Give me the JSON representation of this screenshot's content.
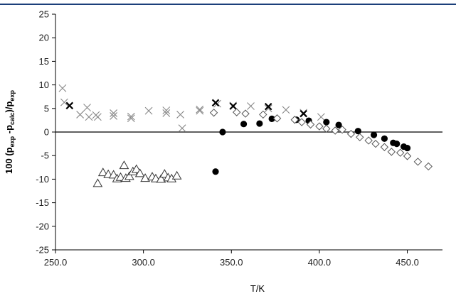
{
  "chart_data": {
    "type": "scatter",
    "title": "",
    "xlabel": "T/K",
    "ylabel_parts": [
      "100 (p",
      "exp",
      " -p",
      "calc",
      ")/p",
      "exp"
    ],
    "xlim": [
      250,
      470
    ],
    "ylim": [
      -25,
      25
    ],
    "xticks": [
      250,
      300,
      350,
      400,
      450
    ],
    "xtick_labels": [
      "250.0",
      "300.0",
      "350.0",
      "400.0",
      "450.0"
    ],
    "yticks": [
      -25,
      -20,
      -15,
      -10,
      -5,
      0,
      5,
      10,
      15,
      20,
      25
    ],
    "ytick_labels": [
      "-25",
      "-20",
      "-15",
      "-10",
      "-5",
      "0",
      "5",
      "10",
      "15",
      "20",
      "25"
    ],
    "grid": false,
    "legend": "none",
    "zero_line": true,
    "series": [
      {
        "marker": "cross-thin",
        "color": "#888888",
        "x": [
          254,
          255,
          264,
          268,
          269,
          273,
          274,
          283,
          283,
          293,
          293,
          303,
          313,
          313,
          321,
          322,
          332,
          332,
          342,
          351,
          361,
          371,
          381,
          391,
          401
        ],
        "y": [
          9.3,
          6.3,
          3.7,
          5.2,
          3.2,
          3.6,
          3.2,
          4.0,
          3.4,
          3.3,
          2.9,
          4.5,
          4.6,
          4.0,
          3.7,
          0.8,
          4.8,
          4.5,
          6.0,
          5.6,
          5.5,
          5.0,
          4.7,
          4.1,
          3.2
        ]
      },
      {
        "marker": "cross-bold",
        "color": "#000000",
        "x": [
          258,
          341,
          351,
          371,
          391
        ],
        "y": [
          5.6,
          6.2,
          5.5,
          5.4,
          3.9
        ]
      },
      {
        "marker": "circle-filled",
        "color": "#000000",
        "x": [
          341,
          345,
          357,
          366,
          373,
          387,
          394,
          404,
          411,
          422,
          431,
          437,
          442,
          444,
          448,
          450
        ],
        "y": [
          -8.4,
          0.0,
          1.7,
          1.8,
          2.8,
          2.6,
          2.4,
          2.1,
          1.5,
          0.2,
          -0.6,
          -1.4,
          -2.3,
          -2.5,
          -3.1,
          -3.4
        ]
      },
      {
        "marker": "diamond-open",
        "color": "#555555",
        "x": [
          340,
          353,
          358,
          368,
          376,
          386,
          390,
          395,
          400,
          404,
          409,
          413,
          418,
          423,
          428,
          432,
          437,
          441,
          446,
          450,
          456,
          462
        ],
        "y": [
          4.1,
          4.2,
          3.9,
          3.7,
          2.9,
          2.6,
          2.1,
          1.6,
          1.2,
          0.7,
          0.3,
          0.5,
          -0.4,
          -1.1,
          -1.8,
          -2.5,
          -3.2,
          -4.2,
          -4.4,
          -5.1,
          -6.3,
          -7.3
        ]
      },
      {
        "marker": "triangle-open",
        "color": "#333333",
        "x": [
          274,
          277,
          280,
          283,
          285,
          287,
          289,
          290,
          292,
          294,
          296,
          298,
          301,
          305,
          307,
          310,
          312,
          314,
          316,
          319
        ],
        "y": [
          -10.9,
          -8.6,
          -9.0,
          -9.1,
          -9.9,
          -9.6,
          -7.1,
          -9.8,
          -9.4,
          -8.4,
          -7.9,
          -8.8,
          -9.8,
          -9.5,
          -9.9,
          -10.0,
          -8.9,
          -9.7,
          -9.9,
          -9.3
        ]
      }
    ]
  }
}
